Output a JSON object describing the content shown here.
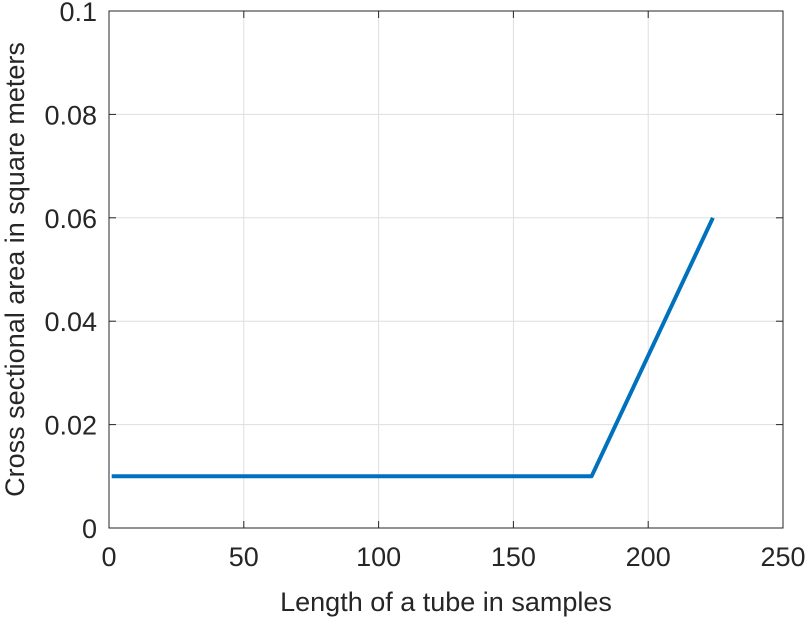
{
  "chart_data": {
    "type": "line",
    "title": "",
    "xlabel": "Length of a tube in samples",
    "ylabel": "Cross sectional area in square meters",
    "xlim": [
      0,
      250
    ],
    "ylim": [
      0,
      0.1
    ],
    "xticks": [
      0,
      50,
      100,
      150,
      200,
      250
    ],
    "yticks": [
      0,
      0.02,
      0.04,
      0.06,
      0.08,
      0.1
    ],
    "xtick_labels": [
      "0",
      "50",
      "100",
      "150",
      "200",
      "250"
    ],
    "ytick_labels": [
      "0",
      "0.02",
      "0.04",
      "0.06",
      "0.08",
      "0.1"
    ],
    "grid": true,
    "series": [
      {
        "color": "#0072BD",
        "x": [
          1,
          179,
          224
        ],
        "y": [
          0.01,
          0.01,
          0.06
        ]
      }
    ]
  }
}
